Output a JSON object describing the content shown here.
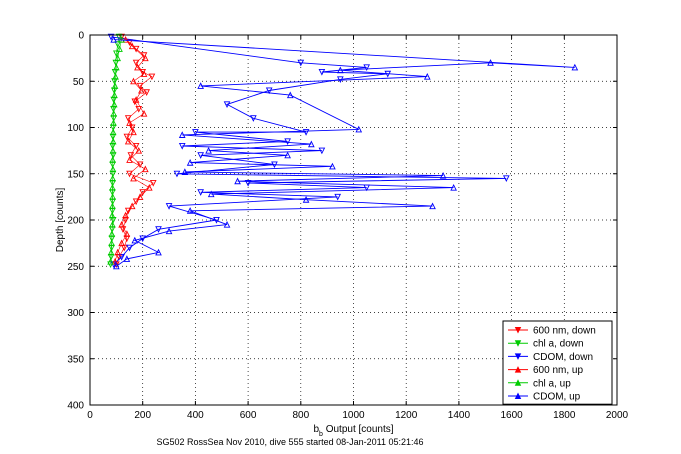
{
  "chart_data": {
    "type": "scatter",
    "title": "",
    "caption": "SG502 RossSea Nov 2010, dive 555 started 08-Jan-2011 05:21:46",
    "xlabel_main": "b",
    "xlabel_sub": "b",
    "xlabel_rest": " Output [counts]",
    "ylabel": "Depth [counts]",
    "xlim": [
      0,
      2000
    ],
    "ylim": [
      0,
      400
    ],
    "y_reversed": true,
    "x_ticks": [
      "0",
      "200",
      "400",
      "600",
      "800",
      "1000",
      "1200",
      "1400",
      "1600",
      "1800",
      "2000"
    ],
    "y_ticks": [
      "0",
      "50",
      "100",
      "150",
      "200",
      "250",
      "300",
      "350",
      "400"
    ],
    "grid": true,
    "legend_position": "bottom-right",
    "series": [
      {
        "name": "600 nm, down",
        "color": "#ff0000",
        "marker": "triangle-down",
        "points": [
          [
            120,
            2
          ],
          [
            150,
            8
          ],
          [
            175,
            15
          ],
          [
            205,
            22
          ],
          [
            175,
            30
          ],
          [
            200,
            40
          ],
          [
            235,
            45
          ],
          [
            190,
            55
          ],
          [
            215,
            62
          ],
          [
            170,
            72
          ],
          [
            185,
            80
          ],
          [
            145,
            90
          ],
          [
            160,
            100
          ],
          [
            140,
            110
          ],
          [
            175,
            120
          ],
          [
            155,
            130
          ],
          [
            190,
            140
          ],
          [
            150,
            150
          ],
          [
            240,
            160
          ],
          [
            200,
            170
          ],
          [
            175,
            180
          ],
          [
            145,
            190
          ],
          [
            135,
            200
          ],
          [
            125,
            210
          ],
          [
            140,
            220
          ],
          [
            130,
            230
          ],
          [
            110,
            240
          ],
          [
            100,
            248
          ]
        ]
      },
      {
        "name": "chl a, down",
        "color": "#00cc00",
        "marker": "triangle-down",
        "points": [
          [
            110,
            2
          ],
          [
            105,
            10
          ],
          [
            100,
            20
          ],
          [
            98,
            30
          ],
          [
            95,
            40
          ],
          [
            93,
            50
          ],
          [
            92,
            60
          ],
          [
            90,
            70
          ],
          [
            89,
            80
          ],
          [
            90,
            90
          ],
          [
            88,
            100
          ],
          [
            87,
            110
          ],
          [
            86,
            120
          ],
          [
            88,
            130
          ],
          [
            86,
            140
          ],
          [
            87,
            150
          ],
          [
            86,
            160
          ],
          [
            85,
            170
          ],
          [
            86,
            180
          ],
          [
            85,
            190
          ],
          [
            88,
            200
          ],
          [
            84,
            210
          ],
          [
            83,
            220
          ],
          [
            82,
            230
          ],
          [
            80,
            240
          ],
          [
            78,
            248
          ]
        ]
      },
      {
        "name": "CDOM, down",
        "color": "#0000ff",
        "marker": "triangle-down",
        "points": [
          [
            80,
            2
          ],
          [
            800,
            30
          ],
          [
            1050,
            35
          ],
          [
            880,
            40
          ],
          [
            1130,
            42
          ],
          [
            950,
            48
          ],
          [
            680,
            60
          ],
          [
            520,
            75
          ],
          [
            620,
            90
          ],
          [
            820,
            105
          ],
          [
            400,
            105
          ],
          [
            750,
            115
          ],
          [
            350,
            120
          ],
          [
            880,
            125
          ],
          [
            420,
            130
          ],
          [
            700,
            140
          ],
          [
            330,
            150
          ],
          [
            1580,
            155
          ],
          [
            600,
            160
          ],
          [
            1050,
            165
          ],
          [
            420,
            170
          ],
          [
            940,
            175
          ],
          [
            300,
            185
          ],
          [
            480,
            200
          ],
          [
            260,
            210
          ],
          [
            200,
            220
          ],
          [
            150,
            230
          ],
          [
            120,
            240
          ],
          [
            90,
            248
          ]
        ]
      },
      {
        "name": "600 nm, up",
        "color": "#ff0000",
        "marker": "triangle-up",
        "points": [
          [
            135,
            5
          ],
          [
            160,
            12
          ],
          [
            210,
            25
          ],
          [
            180,
            35
          ],
          [
            205,
            42
          ],
          [
            165,
            50
          ],
          [
            195,
            60
          ],
          [
            175,
            70
          ],
          [
            205,
            85
          ],
          [
            150,
            95
          ],
          [
            165,
            105
          ],
          [
            145,
            115
          ],
          [
            185,
            125
          ],
          [
            150,
            135
          ],
          [
            210,
            145
          ],
          [
            165,
            155
          ],
          [
            225,
            165
          ],
          [
            190,
            175
          ],
          [
            160,
            185
          ],
          [
            135,
            195
          ],
          [
            120,
            205
          ],
          [
            140,
            215
          ],
          [
            120,
            225
          ],
          [
            105,
            235
          ],
          [
            95,
            245
          ]
        ]
      },
      {
        "name": "chl a, up",
        "color": "#00cc00",
        "marker": "triangle-up",
        "points": [
          [
            120,
            5
          ],
          [
            112,
            15
          ],
          [
            105,
            25
          ],
          [
            100,
            35
          ],
          [
            97,
            45
          ],
          [
            95,
            55
          ],
          [
            93,
            65
          ],
          [
            92,
            75
          ],
          [
            90,
            85
          ],
          [
            89,
            95
          ],
          [
            88,
            105
          ],
          [
            88,
            115
          ],
          [
            87,
            125
          ],
          [
            86,
            135
          ],
          [
            87,
            145
          ],
          [
            86,
            155
          ],
          [
            85,
            165
          ],
          [
            86,
            175
          ],
          [
            85,
            185
          ],
          [
            84,
            195
          ],
          [
            85,
            205
          ],
          [
            83,
            215
          ],
          [
            82,
            225
          ],
          [
            80,
            235
          ],
          [
            78,
            245
          ]
        ]
      },
      {
        "name": "CDOM, up",
        "color": "#0000ff",
        "marker": "triangle-up",
        "points": [
          [
            90,
            5
          ],
          [
            1840,
            35
          ],
          [
            1520,
            30
          ],
          [
            950,
            38
          ],
          [
            1280,
            45
          ],
          [
            420,
            55
          ],
          [
            760,
            65
          ],
          [
            1020,
            102
          ],
          [
            350,
            108
          ],
          [
            840,
            118
          ],
          [
            450,
            125
          ],
          [
            750,
            130
          ],
          [
            380,
            138
          ],
          [
            920,
            142
          ],
          [
            360,
            148
          ],
          [
            1340,
            152
          ],
          [
            560,
            158
          ],
          [
            1380,
            165
          ],
          [
            460,
            172
          ],
          [
            820,
            178
          ],
          [
            1300,
            185
          ],
          [
            380,
            190
          ],
          [
            520,
            205
          ],
          [
            300,
            212
          ],
          [
            170,
            222
          ],
          [
            260,
            235
          ],
          [
            140,
            242
          ],
          [
            100,
            250
          ]
        ]
      }
    ]
  }
}
